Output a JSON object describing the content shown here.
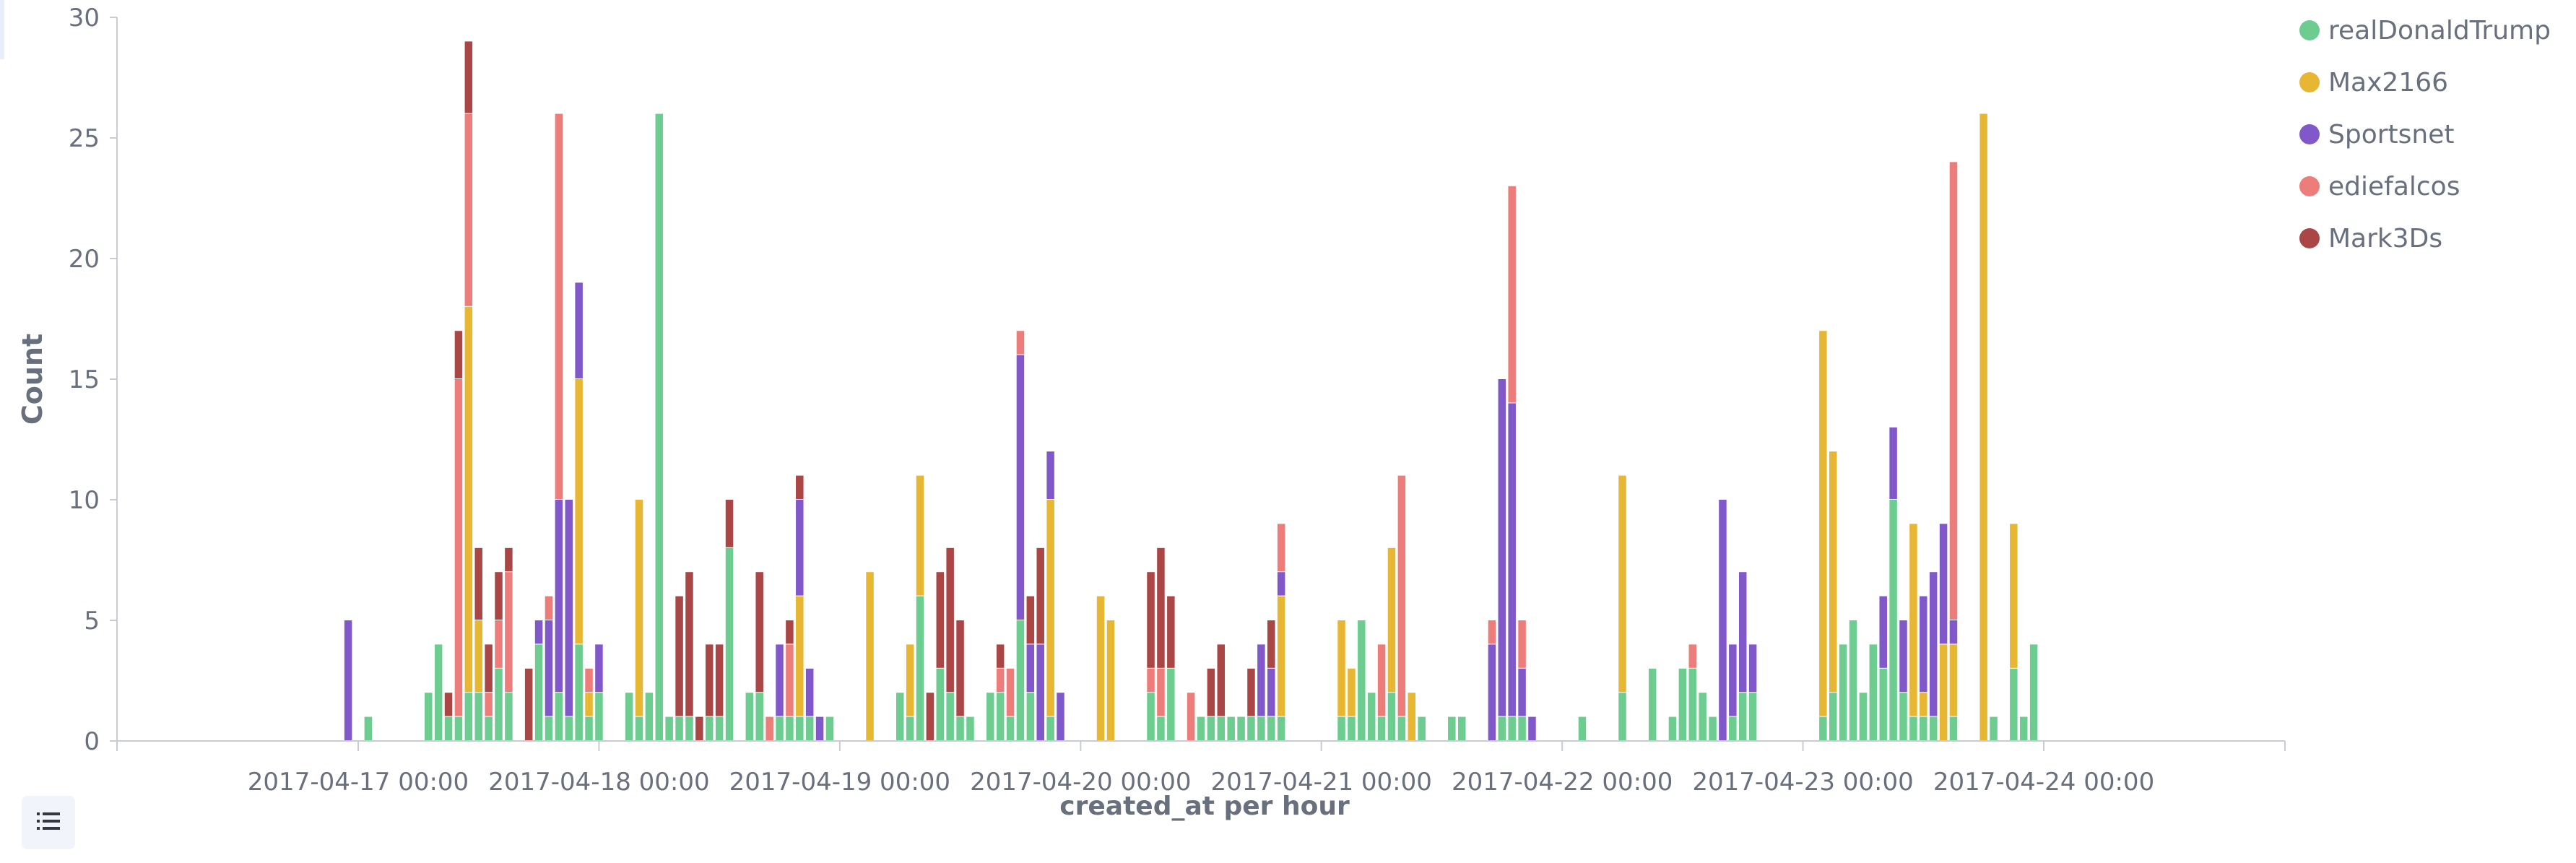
{
  "colors": {
    "realDonaldTrump": "#6dcc8f",
    "Max2166": "#e7b633",
    "Sportsnet": "#8158c9",
    "ediefalcos": "#ec7d7a",
    "Mark3Ds": "#aa4646",
    "axis": "#c9ccd3",
    "text": "#69707d"
  },
  "legend_toggle_icon": "list-icon",
  "chart_data": {
    "type": "bar",
    "stacked": true,
    "xlabel": "created_at per hour",
    "ylabel": "Count",
    "ylim": [
      0,
      30
    ],
    "yticks": [
      0,
      5,
      10,
      15,
      20,
      25,
      30
    ],
    "xticks": [
      "2017-04-17 00:00",
      "2017-04-18 00:00",
      "2017-04-19 00:00",
      "2017-04-20 00:00",
      "2017-04-21 00:00",
      "2017-04-22 00:00",
      "2017-04-23 00:00",
      "2017-04-24 00:00"
    ],
    "legend_position": "top-right",
    "series_names": [
      "realDonaldTrump",
      "Max2166",
      "Sportsnet",
      "ediefalcos",
      "Mark3Ds"
    ],
    "bars": [
      {
        "x": "2017-04-16 23:00",
        "Sportsnet": 5
      },
      {
        "x": "2017-04-17 01:00",
        "realDonaldTrump": 1
      },
      {
        "x": "2017-04-17 07:00",
        "realDonaldTrump": 2
      },
      {
        "x": "2017-04-17 08:00",
        "realDonaldTrump": 4
      },
      {
        "x": "2017-04-17 09:00",
        "realDonaldTrump": 1,
        "Mark3Ds": 1
      },
      {
        "x": "2017-04-17 10:00",
        "realDonaldTrump": 1,
        "ediefalcos": 14,
        "Mark3Ds": 2
      },
      {
        "x": "2017-04-17 11:00",
        "realDonaldTrump": 2,
        "Max2166": 16,
        "ediefalcos": 8,
        "Mark3Ds": 3
      },
      {
        "x": "2017-04-17 12:00",
        "realDonaldTrump": 2,
        "Max2166": 3,
        "Mark3Ds": 3
      },
      {
        "x": "2017-04-17 13:00",
        "realDonaldTrump": 1,
        "ediefalcos": 1,
        "Mark3Ds": 2
      },
      {
        "x": "2017-04-17 14:00",
        "realDonaldTrump": 3,
        "ediefalcos": 2,
        "Mark3Ds": 2
      },
      {
        "x": "2017-04-17 15:00",
        "realDonaldTrump": 2,
        "ediefalcos": 5,
        "Mark3Ds": 1
      },
      {
        "x": "2017-04-17 17:00",
        "Mark3Ds": 3
      },
      {
        "x": "2017-04-17 18:00",
        "realDonaldTrump": 4,
        "Sportsnet": 1
      },
      {
        "x": "2017-04-17 19:00",
        "realDonaldTrump": 1,
        "Sportsnet": 4,
        "ediefalcos": 1
      },
      {
        "x": "2017-04-17 20:00",
        "realDonaldTrump": 2,
        "Sportsnet": 8,
        "ediefalcos": 16
      },
      {
        "x": "2017-04-17 21:00",
        "realDonaldTrump": 1,
        "Sportsnet": 9
      },
      {
        "x": "2017-04-17 22:00",
        "realDonaldTrump": 4,
        "Max2166": 11,
        "Sportsnet": 4
      },
      {
        "x": "2017-04-17 23:00",
        "realDonaldTrump": 1,
        "Max2166": 1,
        "ediefalcos": 1
      },
      {
        "x": "2017-04-18 00:00",
        "realDonaldTrump": 2,
        "Sportsnet": 2
      },
      {
        "x": "2017-04-18 03:00",
        "realDonaldTrump": 2
      },
      {
        "x": "2017-04-18 04:00",
        "realDonaldTrump": 1,
        "Max2166": 9
      },
      {
        "x": "2017-04-18 05:00",
        "realDonaldTrump": 2
      },
      {
        "x": "2017-04-18 06:00",
        "realDonaldTrump": 26
      },
      {
        "x": "2017-04-18 07:00",
        "realDonaldTrump": 1
      },
      {
        "x": "2017-04-18 08:00",
        "realDonaldTrump": 1,
        "Mark3Ds": 5
      },
      {
        "x": "2017-04-18 09:00",
        "realDonaldTrump": 1,
        "Mark3Ds": 6
      },
      {
        "x": "2017-04-18 10:00",
        "Mark3Ds": 1
      },
      {
        "x": "2017-04-18 11:00",
        "realDonaldTrump": 1,
        "Mark3Ds": 3
      },
      {
        "x": "2017-04-18 12:00",
        "realDonaldTrump": 1,
        "Mark3Ds": 3
      },
      {
        "x": "2017-04-18 13:00",
        "realDonaldTrump": 8,
        "Mark3Ds": 2
      },
      {
        "x": "2017-04-18 15:00",
        "realDonaldTrump": 2
      },
      {
        "x": "2017-04-18 16:00",
        "realDonaldTrump": 2,
        "Mark3Ds": 5
      },
      {
        "x": "2017-04-18 17:00",
        "ediefalcos": 1
      },
      {
        "x": "2017-04-18 18:00",
        "realDonaldTrump": 1,
        "Sportsnet": 3
      },
      {
        "x": "2017-04-18 19:00",
        "realDonaldTrump": 1,
        "ediefalcos": 3,
        "Mark3Ds": 1
      },
      {
        "x": "2017-04-18 20:00",
        "realDonaldTrump": 1,
        "Max2166": 5,
        "Sportsnet": 4,
        "Mark3Ds": 1
      },
      {
        "x": "2017-04-18 21:00",
        "realDonaldTrump": 1,
        "Sportsnet": 2
      },
      {
        "x": "2017-04-18 22:00",
        "Sportsnet": 1
      },
      {
        "x": "2017-04-18 23:00",
        "realDonaldTrump": 1
      },
      {
        "x": "2017-04-19 03:00",
        "Max2166": 7
      },
      {
        "x": "2017-04-19 06:00",
        "realDonaldTrump": 2
      },
      {
        "x": "2017-04-19 07:00",
        "realDonaldTrump": 1,
        "Max2166": 3
      },
      {
        "x": "2017-04-19 08:00",
        "realDonaldTrump": 6,
        "Max2166": 5
      },
      {
        "x": "2017-04-19 09:00",
        "Mark3Ds": 2
      },
      {
        "x": "2017-04-19 10:00",
        "realDonaldTrump": 3,
        "Mark3Ds": 4
      },
      {
        "x": "2017-04-19 11:00",
        "realDonaldTrump": 2,
        "Mark3Ds": 6
      },
      {
        "x": "2017-04-19 12:00",
        "realDonaldTrump": 1,
        "Mark3Ds": 4
      },
      {
        "x": "2017-04-19 13:00",
        "realDonaldTrump": 1
      },
      {
        "x": "2017-04-19 15:00",
        "realDonaldTrump": 2
      },
      {
        "x": "2017-04-19 16:00",
        "realDonaldTrump": 2,
        "ediefalcos": 1,
        "Mark3Ds": 1
      },
      {
        "x": "2017-04-19 17:00",
        "realDonaldTrump": 1,
        "ediefalcos": 2
      },
      {
        "x": "2017-04-19 18:00",
        "realDonaldTrump": 5,
        "Sportsnet": 11,
        "ediefalcos": 1
      },
      {
        "x": "2017-04-19 19:00",
        "realDonaldTrump": 2,
        "Sportsnet": 2,
        "Mark3Ds": 2
      },
      {
        "x": "2017-04-19 20:00",
        "Sportsnet": 4,
        "Mark3Ds": 4
      },
      {
        "x": "2017-04-19 21:00",
        "realDonaldTrump": 1,
        "Max2166": 9,
        "Sportsnet": 2
      },
      {
        "x": "2017-04-19 22:00",
        "Sportsnet": 2
      },
      {
        "x": "2017-04-20 02:00",
        "Max2166": 6
      },
      {
        "x": "2017-04-20 03:00",
        "Max2166": 5
      },
      {
        "x": "2017-04-20 07:00",
        "realDonaldTrump": 2,
        "ediefalcos": 1,
        "Mark3Ds": 4
      },
      {
        "x": "2017-04-20 08:00",
        "realDonaldTrump": 1,
        "ediefalcos": 2,
        "Mark3Ds": 5
      },
      {
        "x": "2017-04-20 09:00",
        "realDonaldTrump": 3,
        "Mark3Ds": 3
      },
      {
        "x": "2017-04-20 11:00",
        "ediefalcos": 2
      },
      {
        "x": "2017-04-20 12:00",
        "realDonaldTrump": 1
      },
      {
        "x": "2017-04-20 13:00",
        "realDonaldTrump": 1,
        "Mark3Ds": 2
      },
      {
        "x": "2017-04-20 14:00",
        "realDonaldTrump": 1,
        "Mark3Ds": 3
      },
      {
        "x": "2017-04-20 15:00",
        "realDonaldTrump": 1
      },
      {
        "x": "2017-04-20 16:00",
        "realDonaldTrump": 1
      },
      {
        "x": "2017-04-20 17:00",
        "realDonaldTrump": 1,
        "Mark3Ds": 2
      },
      {
        "x": "2017-04-20 18:00",
        "realDonaldTrump": 1,
        "Sportsnet": 3
      },
      {
        "x": "2017-04-20 19:00",
        "realDonaldTrump": 1,
        "Sportsnet": 2,
        "Mark3Ds": 2
      },
      {
        "x": "2017-04-20 20:00",
        "realDonaldTrump": 1,
        "Max2166": 5,
        "Sportsnet": 1,
        "ediefalcos": 2
      },
      {
        "x": "2017-04-21 02:00",
        "realDonaldTrump": 1,
        "Max2166": 4
      },
      {
        "x": "2017-04-21 03:00",
        "realDonaldTrump": 1,
        "Max2166": 2
      },
      {
        "x": "2017-04-21 04:00",
        "realDonaldTrump": 5
      },
      {
        "x": "2017-04-21 05:00",
        "realDonaldTrump": 2
      },
      {
        "x": "2017-04-21 06:00",
        "realDonaldTrump": 1,
        "ediefalcos": 3
      },
      {
        "x": "2017-04-21 07:00",
        "realDonaldTrump": 2,
        "Max2166": 6
      },
      {
        "x": "2017-04-21 08:00",
        "realDonaldTrump": 1,
        "ediefalcos": 10
      },
      {
        "x": "2017-04-21 09:00",
        "Max2166": 2
      },
      {
        "x": "2017-04-21 10:00",
        "realDonaldTrump": 1
      },
      {
        "x": "2017-04-21 13:00",
        "realDonaldTrump": 1
      },
      {
        "x": "2017-04-21 14:00",
        "realDonaldTrump": 1
      },
      {
        "x": "2017-04-21 17:00",
        "Sportsnet": 4,
        "ediefalcos": 1
      },
      {
        "x": "2017-04-21 18:00",
        "realDonaldTrump": 1,
        "Sportsnet": 14
      },
      {
        "x": "2017-04-21 19:00",
        "realDonaldTrump": 1,
        "Sportsnet": 13,
        "ediefalcos": 9
      },
      {
        "x": "2017-04-21 20:00",
        "realDonaldTrump": 1,
        "Sportsnet": 2,
        "ediefalcos": 2
      },
      {
        "x": "2017-04-21 21:00",
        "Sportsnet": 1
      },
      {
        "x": "2017-04-22 02:00",
        "realDonaldTrump": 1
      },
      {
        "x": "2017-04-22 06:00",
        "realDonaldTrump": 2,
        "Max2166": 9
      },
      {
        "x": "2017-04-22 09:00",
        "realDonaldTrump": 3
      },
      {
        "x": "2017-04-22 11:00",
        "realDonaldTrump": 1
      },
      {
        "x": "2017-04-22 12:00",
        "realDonaldTrump": 3
      },
      {
        "x": "2017-04-22 13:00",
        "realDonaldTrump": 3,
        "ediefalcos": 1
      },
      {
        "x": "2017-04-22 14:00",
        "realDonaldTrump": 2
      },
      {
        "x": "2017-04-22 15:00",
        "realDonaldTrump": 1
      },
      {
        "x": "2017-04-22 16:00",
        "Sportsnet": 10
      },
      {
        "x": "2017-04-22 17:00",
        "realDonaldTrump": 1,
        "Sportsnet": 3
      },
      {
        "x": "2017-04-22 18:00",
        "realDonaldTrump": 2,
        "Sportsnet": 5
      },
      {
        "x": "2017-04-22 19:00",
        "realDonaldTrump": 2,
        "Sportsnet": 2
      },
      {
        "x": "2017-04-23 02:00",
        "realDonaldTrump": 1,
        "Max2166": 16
      },
      {
        "x": "2017-04-23 03:00",
        "realDonaldTrump": 2,
        "Max2166": 10
      },
      {
        "x": "2017-04-23 04:00",
        "realDonaldTrump": 4
      },
      {
        "x": "2017-04-23 05:00",
        "realDonaldTrump": 5
      },
      {
        "x": "2017-04-23 06:00",
        "realDonaldTrump": 2
      },
      {
        "x": "2017-04-23 07:00",
        "realDonaldTrump": 4
      },
      {
        "x": "2017-04-23 08:00",
        "realDonaldTrump": 3,
        "Sportsnet": 3
      },
      {
        "x": "2017-04-23 09:00",
        "realDonaldTrump": 10,
        "Sportsnet": 3
      },
      {
        "x": "2017-04-23 10:00",
        "realDonaldTrump": 2,
        "Sportsnet": 3
      },
      {
        "x": "2017-04-23 11:00",
        "realDonaldTrump": 1,
        "Max2166": 8
      },
      {
        "x": "2017-04-23 12:00",
        "realDonaldTrump": 1,
        "Max2166": 1,
        "Sportsnet": 4
      },
      {
        "x": "2017-04-23 13:00",
        "realDonaldTrump": 1,
        "Sportsnet": 6
      },
      {
        "x": "2017-04-23 14:00",
        "Max2166": 4,
        "Sportsnet": 5
      },
      {
        "x": "2017-04-23 15:00",
        "realDonaldTrump": 1,
        "Max2166": 3,
        "Sportsnet": 1,
        "ediefalcos": 19
      },
      {
        "x": "2017-04-23 18:00",
        "Max2166": 26
      },
      {
        "x": "2017-04-23 19:00",
        "realDonaldTrump": 1
      },
      {
        "x": "2017-04-23 21:00",
        "realDonaldTrump": 3,
        "Max2166": 6
      },
      {
        "x": "2017-04-23 22:00",
        "realDonaldTrump": 1
      },
      {
        "x": "2017-04-23 23:00",
        "realDonaldTrump": 4
      }
    ]
  }
}
